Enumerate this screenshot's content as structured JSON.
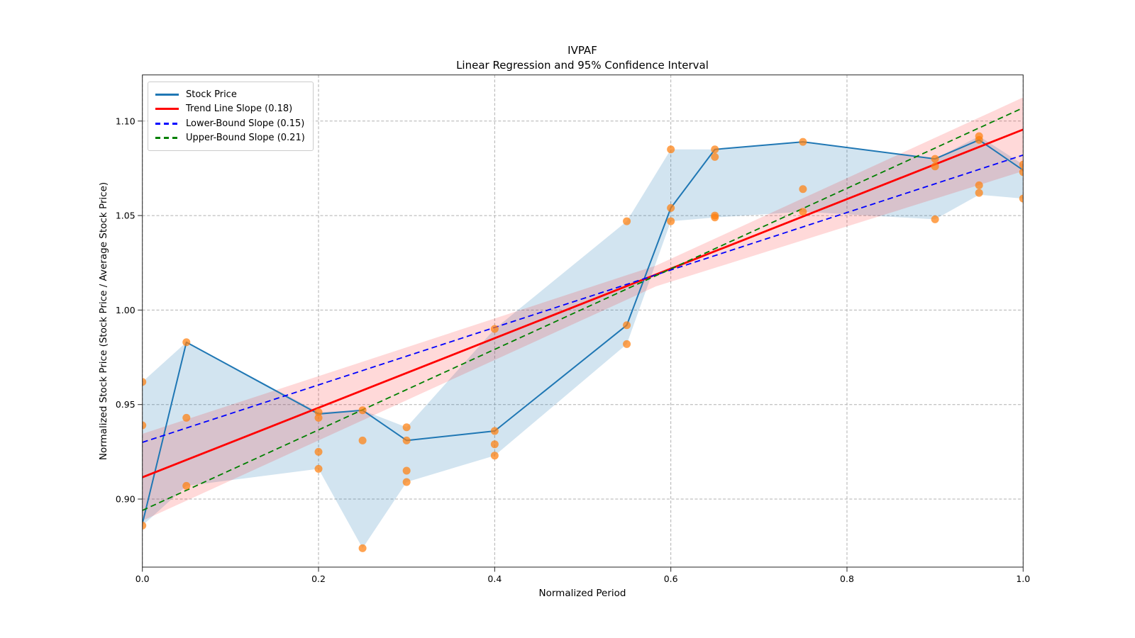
{
  "chart_data": {
    "type": "line",
    "title": "IVPAF",
    "subtitle": "Linear Regression and 95% Confidence Interval",
    "xlabel": "Normalized Period",
    "ylabel": "Normalized Stock Price (Stock Price / Average Stock Price)",
    "xlim": [
      0.0,
      1.0
    ],
    "ylim": [
      0.864,
      1.1244
    ],
    "x_ticks": [
      0.0,
      0.2,
      0.4,
      0.6,
      0.8,
      1.0
    ],
    "x_tick_labels": [
      "0.0",
      "0.2",
      "0.4",
      "0.6",
      "0.8",
      "1.0"
    ],
    "y_ticks": [
      0.9,
      0.95,
      1.0,
      1.05,
      1.1
    ],
    "y_tick_labels": [
      "0.90",
      "0.95",
      "1.00",
      "1.05",
      "1.10"
    ],
    "grid": true,
    "legend_position": "upper-left",
    "legend": [
      {
        "label": "Stock Price",
        "color": "#1f77b4",
        "dash": false
      },
      {
        "label": "Trend Line Slope (0.18)",
        "color": "#ff0000",
        "dash": false
      },
      {
        "label": "Lower-Bound Slope (0.15)",
        "color": "#0000ff",
        "dash": true
      },
      {
        "label": "Upper-Bound Slope (0.21)",
        "color": "#008000",
        "dash": true
      }
    ],
    "series": {
      "stock_line": {
        "name": "Stock Price",
        "color": "#1f77b4",
        "x": [
          0.0,
          0.05,
          0.2,
          0.25,
          0.3,
          0.4,
          0.55,
          0.6,
          0.65,
          0.75,
          0.9,
          0.95,
          1.0
        ],
        "y": [
          0.887,
          0.983,
          0.945,
          0.947,
          0.931,
          0.936,
          0.992,
          1.054,
          1.085,
          1.089,
          1.08,
          1.09,
          1.074
        ]
      },
      "stock_band": {
        "name": "Stock Price min-max band",
        "color": "#1f77b4",
        "opacity": 0.2,
        "x": [
          0.0,
          0.05,
          0.2,
          0.25,
          0.3,
          0.4,
          0.55,
          0.6,
          0.65,
          0.75,
          0.9,
          0.95,
          1.0
        ],
        "upper": [
          0.962,
          0.983,
          0.946,
          0.947,
          0.938,
          0.99,
          1.047,
          1.085,
          1.085,
          1.089,
          1.08,
          1.092,
          1.077
        ],
        "lower": [
          0.886,
          0.907,
          0.916,
          0.874,
          0.909,
          0.923,
          0.982,
          1.047,
          1.049,
          1.052,
          1.048,
          1.061,
          1.059
        ]
      },
      "scatter": {
        "name": "Stock Price observations",
        "color": "#ff7f0e",
        "opacity": 0.72,
        "points": [
          [
            0.0,
            0.962
          ],
          [
            0.0,
            0.939
          ],
          [
            0.0,
            0.886
          ],
          [
            0.05,
            0.983
          ],
          [
            0.05,
            0.943
          ],
          [
            0.05,
            0.907
          ],
          [
            0.2,
            0.946
          ],
          [
            0.2,
            0.943
          ],
          [
            0.2,
            0.925
          ],
          [
            0.2,
            0.916
          ],
          [
            0.25,
            0.947
          ],
          [
            0.25,
            0.931
          ],
          [
            0.25,
            0.874
          ],
          [
            0.3,
            0.938
          ],
          [
            0.3,
            0.931
          ],
          [
            0.3,
            0.915
          ],
          [
            0.3,
            0.909
          ],
          [
            0.4,
            0.99
          ],
          [
            0.4,
            0.936
          ],
          [
            0.4,
            0.929
          ],
          [
            0.4,
            0.923
          ],
          [
            0.55,
            1.047
          ],
          [
            0.55,
            0.992
          ],
          [
            0.55,
            0.982
          ],
          [
            0.6,
            1.085
          ],
          [
            0.6,
            1.054
          ],
          [
            0.6,
            1.047
          ],
          [
            0.65,
            1.085
          ],
          [
            0.65,
            1.081
          ],
          [
            0.65,
            1.05
          ],
          [
            0.65,
            1.049
          ],
          [
            0.75,
            1.089
          ],
          [
            0.75,
            1.064
          ],
          [
            0.75,
            1.052
          ],
          [
            0.9,
            1.08
          ],
          [
            0.9,
            1.076
          ],
          [
            0.9,
            1.048
          ],
          [
            0.95,
            1.092
          ],
          [
            0.95,
            1.09
          ],
          [
            0.95,
            1.066
          ],
          [
            0.95,
            1.062
          ],
          [
            1.0,
            1.077
          ],
          [
            1.0,
            1.073
          ],
          [
            1.0,
            1.059
          ]
        ]
      },
      "trend_line": {
        "name": "Trend Line",
        "slope": 0.18,
        "color": "#ff0000",
        "endpoints": [
          [
            0.0,
            0.9115
          ],
          [
            1.0,
            1.0955
          ]
        ]
      },
      "lower_bound_line": {
        "name": "Lower-Bound Slope",
        "slope": 0.15,
        "color": "#0000ff",
        "endpoints": [
          [
            0.0,
            0.93
          ],
          [
            1.0,
            1.082
          ]
        ]
      },
      "upper_bound_line": {
        "name": "Upper-Bound Slope",
        "slope": 0.21,
        "color": "#008000",
        "endpoints": [
          [
            0.0,
            0.894
          ],
          [
            1.0,
            1.107
          ]
        ]
      },
      "ci_band": {
        "name": "95% confidence band",
        "color": "#ff0000",
        "opacity": 0.15,
        "upper": [
          [
            0.0,
            0.9345
          ],
          [
            0.583,
            1.0235
          ],
          [
            1.0,
            1.1125
          ]
        ],
        "lower": [
          [
            0.0,
            0.8885
          ],
          [
            0.583,
            1.0125
          ],
          [
            1.0,
            1.0735
          ]
        ]
      }
    }
  }
}
